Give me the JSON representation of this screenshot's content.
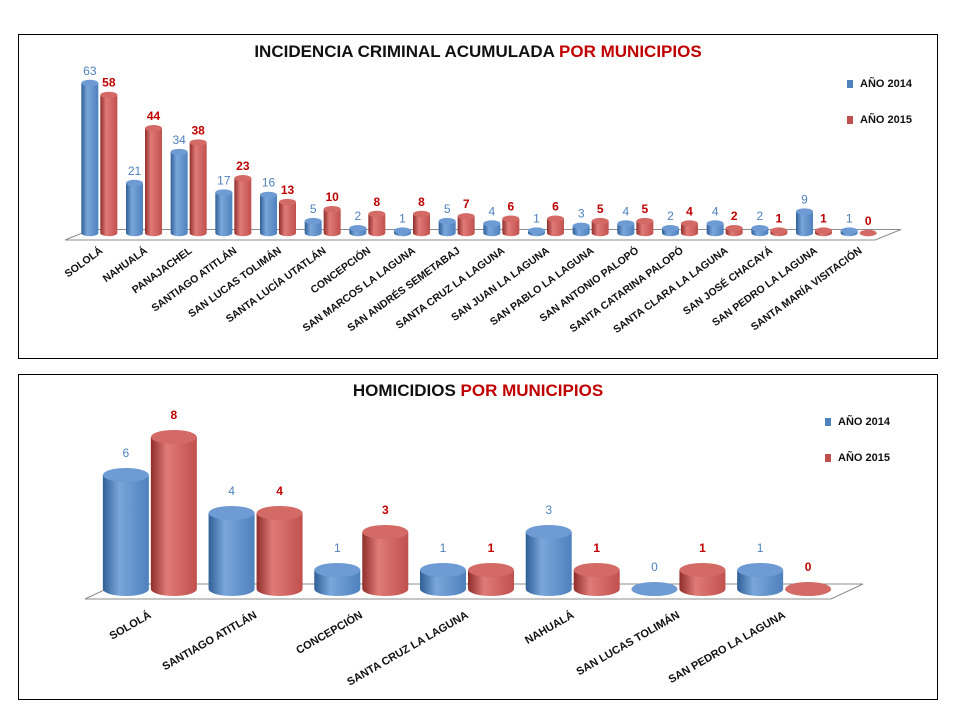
{
  "colors": {
    "series_2014": "#4f81bd",
    "series_2015": "#c0504d",
    "value_2014": "#4f81bd",
    "value_2015": "#c00000",
    "title_accent": "#c00000"
  },
  "chart_data": [
    {
      "type": "bar",
      "title_main": "INCIDENCIA CRIMINAL ACUMULADA",
      "title_accent": "POR MUNICIPIOS",
      "legend_position": "top-right",
      "categories": [
        "SOLOLÁ",
        "NAHUALÁ",
        "PANAJACHEL",
        "SANTIAGO ATITLÁN",
        "SAN LUCAS TOLIMÁN",
        "SANTA LUCÍA UTATLÁN",
        "CONCEPCIÓN",
        "SAN MARCOS LA LAGUNA",
        "SAN ANDRÉS SEMETABAJ",
        "SANTA CRUZ LA LAGUNA",
        "SAN JUAN LA LAGUNA",
        "SAN PABLO LA LAGUNA",
        "SAN ANTONIO PALOPÓ",
        "SANTA CATARINA PALOPÓ",
        "SANTA CLARA LA LAGUNA",
        "SAN JOSÉ CHACAYÁ",
        "SAN PEDRO LA LAGUNA",
        "SANTA MARÍA VISITACIÓN"
      ],
      "series": [
        {
          "name": "AÑO 2014",
          "values": [
            63,
            21,
            34,
            17,
            16,
            5,
            2,
            1,
            5,
            4,
            1,
            3,
            4,
            2,
            4,
            2,
            9,
            1
          ]
        },
        {
          "name": "AÑO 2015",
          "values": [
            58,
            44,
            38,
            23,
            13,
            10,
            8,
            8,
            7,
            6,
            6,
            5,
            5,
            4,
            2,
            1,
            1,
            0
          ]
        }
      ],
      "ylim": [
        0,
        63
      ],
      "grid": false
    },
    {
      "type": "bar",
      "title_main": "HOMICIDIOS",
      "title_accent": "POR MUNICIPIOS",
      "legend_position": "top-right",
      "categories": [
        "SOLOLÁ",
        "SANTIAGO ATITLÁN",
        "CONCEPCIÓN",
        "SANTA CRUZ LA LAGUNA",
        "NAHUALÁ",
        "SAN LUCAS TOLIMÁN",
        "SAN PEDRO LA LAGUNA"
      ],
      "series": [
        {
          "name": "AÑO 2014",
          "values": [
            6,
            4,
            1,
            1,
            3,
            0,
            1
          ]
        },
        {
          "name": "AÑO 2015",
          "values": [
            8,
            4,
            3,
            1,
            1,
            1,
            0
          ]
        }
      ],
      "ylim": [
        0,
        8
      ],
      "grid": false
    }
  ]
}
